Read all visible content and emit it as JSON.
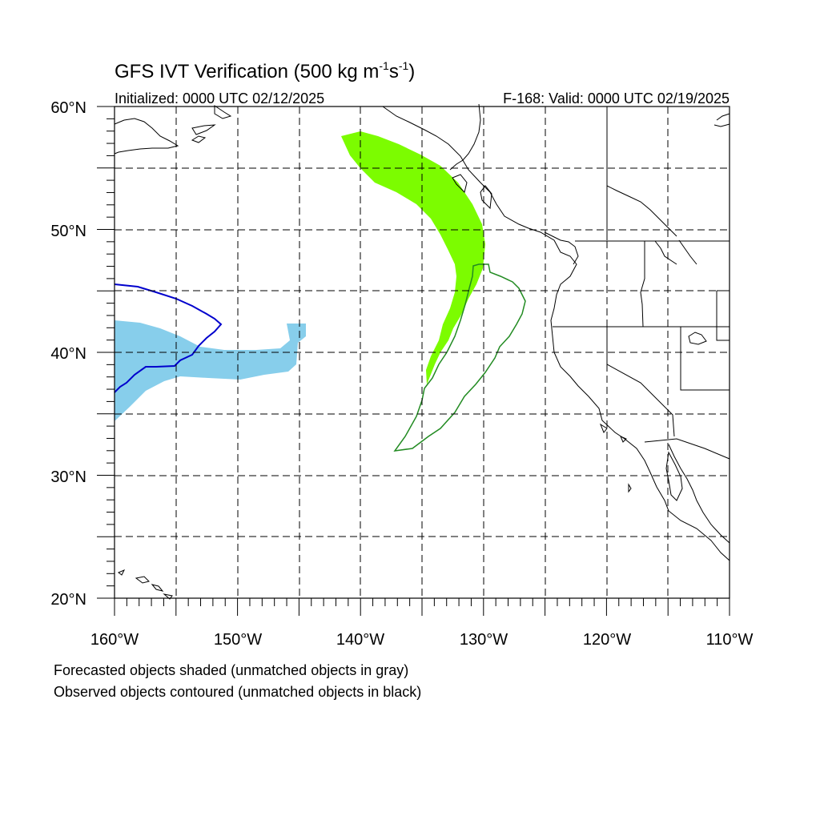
{
  "title": {
    "main": "GFS IVT Verification (500 kg m",
    "sup1": "-1",
    "mid": "s",
    "sup2": "-1",
    "end": ")"
  },
  "init_label": "Initialized: 0000 UTC 02/12/2025",
  "valid_label": "F-168: Valid: 0000 UTC 02/19/2025",
  "lat_labels": [
    "60°N",
    "50°N",
    "40°N",
    "30°N",
    "20°N"
  ],
  "lon_labels": [
    "160°W",
    "150°W",
    "140°W",
    "130°W",
    "120°W",
    "110°W"
  ],
  "notes": [
    "Forecasted objects shaded (unmatched objects in gray)",
    "Observed objects contoured (unmatched objects in black)"
  ],
  "colors": {
    "forecast_object_1": "#87ceeb",
    "forecast_object_2": "#7cfc00",
    "observed_object_1": "#0000cd",
    "observed_object_2": "#228b22"
  },
  "map_extent": {
    "lon": [
      -160,
      -110
    ],
    "lat": [
      20,
      60
    ]
  }
}
